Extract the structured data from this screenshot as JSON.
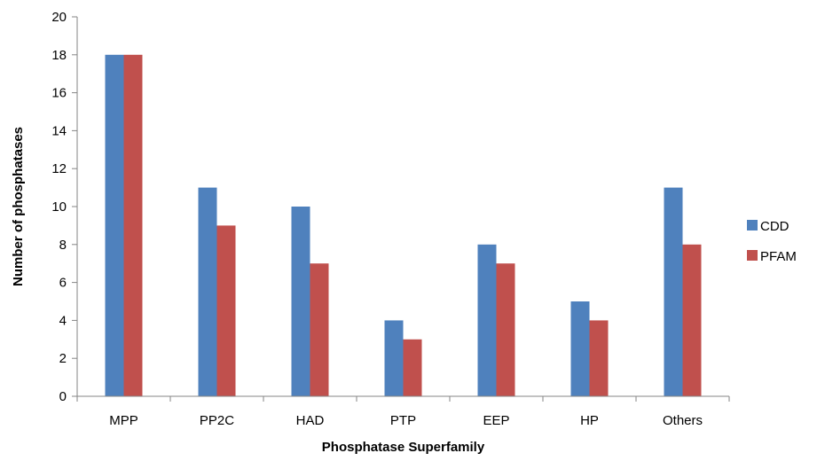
{
  "chart_data": {
    "type": "bar",
    "title": "",
    "xlabel": "Phosphatase Superfamily",
    "ylabel": "Number of phosphatases",
    "categories": [
      "MPP",
      "PP2C",
      "HAD",
      "PTP",
      "EEP",
      "HP",
      "Others"
    ],
    "series": [
      {
        "name": "CDD",
        "values": [
          18,
          11,
          10,
          4,
          8,
          5,
          11
        ],
        "color": "#4F81BD"
      },
      {
        "name": "PFAM",
        "values": [
          18,
          9,
          7,
          3,
          7,
          4,
          8
        ],
        "color": "#C0504D"
      }
    ],
    "ylim": [
      0,
      20
    ],
    "yticks": [
      "0",
      "2",
      "4",
      "6",
      "8",
      "10",
      "12",
      "14",
      "16",
      "18",
      "20"
    ],
    "grid": false,
    "legend_position": "right"
  }
}
